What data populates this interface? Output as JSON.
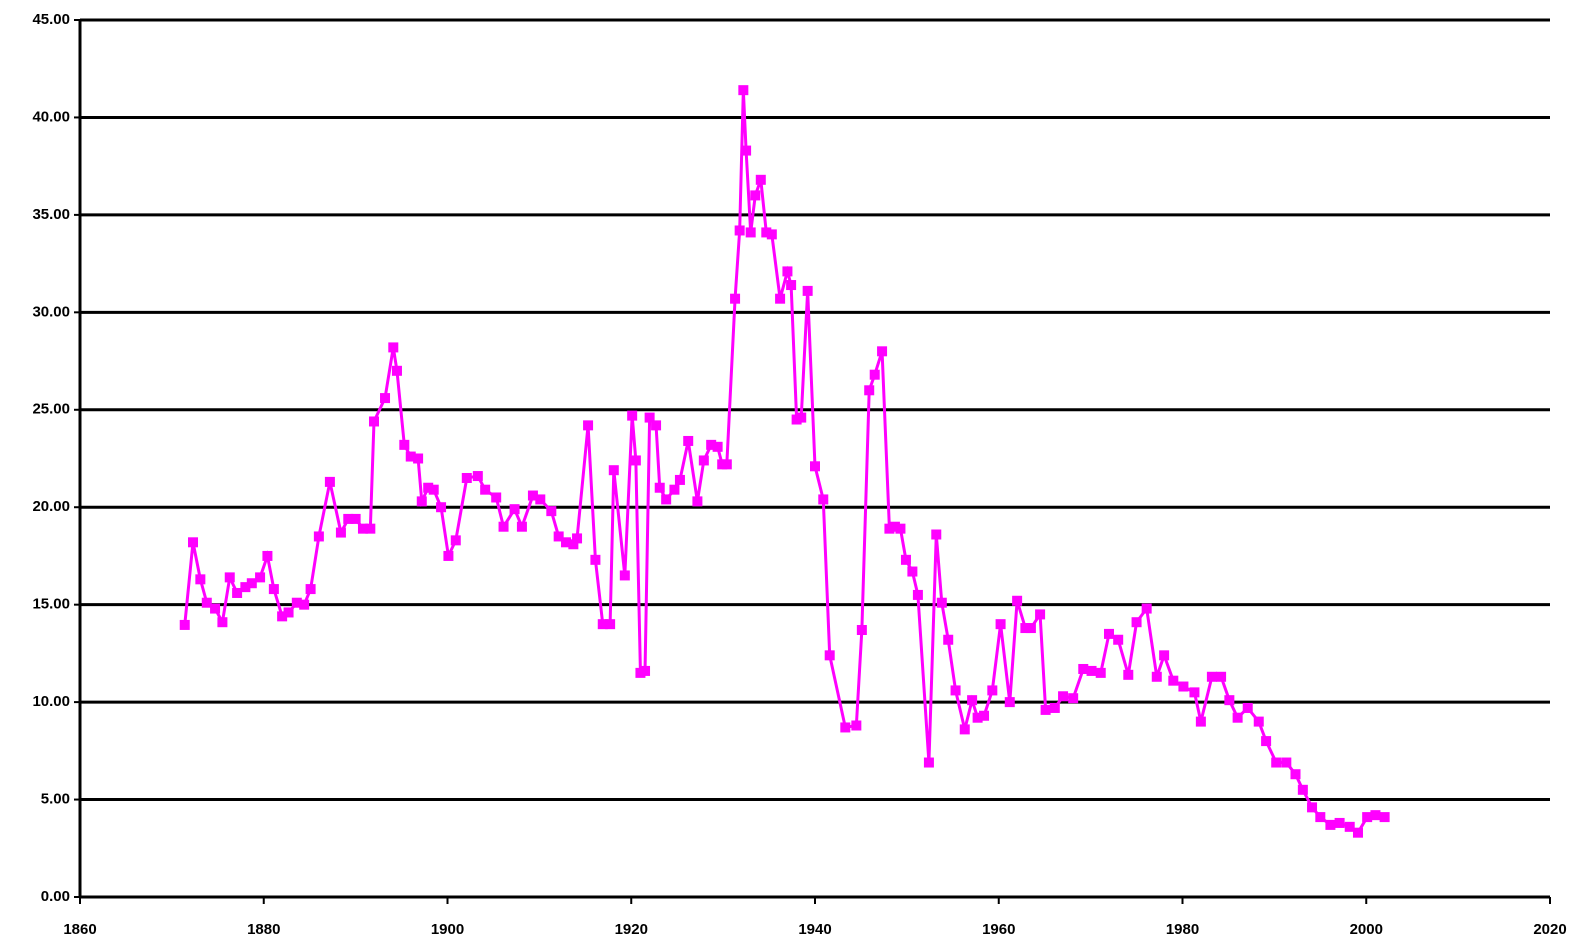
{
  "chart_data": {
    "type": "line",
    "color": "#ff00ff",
    "grid": true,
    "xlim": [
      1860,
      2020
    ],
    "xticks": [
      1860,
      1880,
      1900,
      1920,
      1940,
      1960,
      1980,
      2000,
      2020
    ],
    "ylim": [
      0,
      45
    ],
    "yticks": [
      {
        "value": 0,
        "label": "0.00"
      },
      {
        "value": 5,
        "label": "5.00"
      },
      {
        "value": 10,
        "label": "10.00"
      },
      {
        "value": 15,
        "label": "15.00"
      },
      {
        "value": 20,
        "label": "20.00"
      },
      {
        "value": 25,
        "label": "25.00"
      },
      {
        "value": 30,
        "label": "30.00"
      },
      {
        "value": 35,
        "label": "35.00"
      },
      {
        "value": 40,
        "label": "40.00"
      },
      {
        "value": 45,
        "label": "45.00"
      }
    ],
    "x": [
      1871.4,
      1872.3,
      1873.1,
      1873.8,
      1874.7,
      1875.5,
      1876.3,
      1877.1,
      1878.0,
      1878.7,
      1879.6,
      1880.4,
      1881.1,
      1882.0,
      1882.7,
      1883.6,
      1884.4,
      1885.1,
      1886.0,
      1887.2,
      1888.4,
      1889.2,
      1890.0,
      1890.8,
      1891.6,
      1892.0,
      1893.2,
      1894.1,
      1894.5,
      1895.3,
      1896.0,
      1896.8,
      1897.2,
      1897.9,
      1898.5,
      1899.3,
      1900.1,
      1900.9,
      1902.1,
      1903.3,
      1904.1,
      1905.3,
      1906.1,
      1907.3,
      1908.1,
      1909.3,
      1910.1,
      1911.3,
      1912.1,
      1912.9,
      1913.7,
      1914.1,
      1915.3,
      1916.1,
      1916.9,
      1917.7,
      1918.1,
      1919.3,
      1920.1,
      1920.5,
      1921.0,
      1921.5,
      1922.0,
      1922.7,
      1923.1,
      1923.8,
      1924.7,
      1925.3,
      1926.2,
      1927.2,
      1927.9,
      1928.7,
      1929.4,
      1929.9,
      1930.4,
      1931.3,
      1931.8,
      1932.2,
      1932.5,
      1933.0,
      1933.5,
      1934.1,
      1934.7,
      1935.3,
      1936.2,
      1937.0,
      1937.4,
      1938.0,
      1938.5,
      1939.2,
      1940.0,
      1940.9,
      1941.6,
      1943.3,
      1944.5,
      1945.1,
      1945.9,
      1946.5,
      1947.3,
      1948.1,
      1948.7,
      1949.3,
      1949.9,
      1950.6,
      1951.2,
      1952.4,
      1953.2,
      1953.8,
      1954.5,
      1955.3,
      1956.3,
      1957.1,
      1957.7,
      1958.4,
      1959.3,
      1960.2,
      1961.2,
      1962.0,
      1962.9,
      1963.5,
      1964.5,
      1965.1,
      1966.1,
      1967.0,
      1968.1,
      1969.2,
      1970.1,
      1971.1,
      1972.0,
      1973.0,
      1974.1,
      1975.0,
      1976.1,
      1977.2,
      1978.0,
      1979.0,
      1980.1,
      1981.3,
      1982.0,
      1983.2,
      1984.2,
      1985.1,
      1986.0,
      1987.1,
      1988.3,
      1989.1,
      1990.2,
      1991.3,
      1992.3,
      1993.1,
      1994.1,
      1995.0,
      1996.1,
      1997.1,
      1998.2,
      1999.1,
      2000.1,
      2001.0,
      2002.0
    ],
    "values": [
      13.96,
      18.2,
      16.3,
      15.1,
      14.8,
      14.1,
      16.4,
      15.6,
      15.9,
      16.1,
      16.4,
      17.5,
      15.8,
      14.4,
      14.6,
      15.1,
      15.0,
      15.8,
      18.5,
      21.3,
      18.7,
      19.4,
      19.4,
      18.9,
      18.9,
      24.4,
      25.6,
      28.2,
      27.0,
      23.2,
      22.6,
      22.5,
      20.3,
      21.0,
      20.9,
      20.0,
      17.5,
      18.3,
      21.5,
      21.6,
      20.9,
      20.5,
      19.0,
      19.9,
      19.0,
      20.6,
      20.4,
      19.8,
      18.5,
      18.2,
      18.1,
      18.4,
      24.2,
      17.3,
      14.0,
      14.0,
      21.9,
      16.5,
      24.7,
      22.4,
      11.5,
      11.6,
      24.6,
      24.2,
      21.0,
      20.4,
      20.9,
      21.4,
      23.4,
      20.3,
      22.4,
      23.2,
      23.1,
      22.2,
      22.2,
      30.7,
      34.2,
      41.4,
      38.3,
      34.1,
      36.0,
      36.8,
      34.1,
      34.0,
      30.7,
      32.1,
      31.4,
      24.5,
      24.6,
      31.1,
      22.1,
      20.4,
      12.4,
      8.7,
      8.8,
      13.7,
      26.0,
      26.8,
      28.0,
      18.9,
      19.0,
      18.9,
      17.3,
      16.7,
      15.5,
      6.9,
      18.6,
      15.1,
      13.2,
      10.6,
      8.6,
      10.1,
      9.2,
      9.3,
      10.6,
      14.0,
      10.0,
      15.2,
      13.8,
      13.8,
      14.5,
      9.6,
      9.7,
      10.3,
      10.2,
      11.7,
      11.6,
      11.5,
      13.5,
      13.2,
      11.4,
      14.1,
      14.8,
      11.3,
      12.4,
      11.1,
      10.8,
      10.5,
      9.0,
      11.3,
      11.3,
      10.1,
      9.2,
      9.7,
      9.0,
      8.0,
      6.9,
      6.9,
      6.3,
      5.5,
      4.6,
      4.1,
      3.7,
      3.8,
      3.6,
      3.3,
      4.1,
      4.2,
      4.1
    ]
  }
}
